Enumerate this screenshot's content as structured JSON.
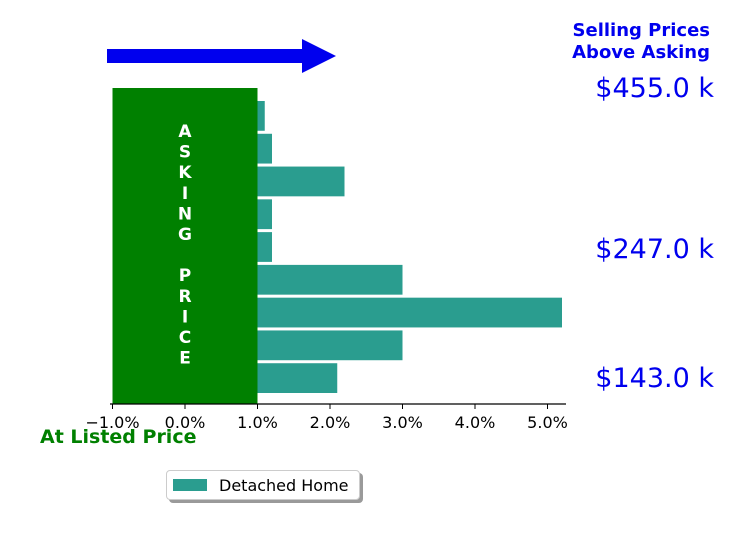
{
  "chart_data": {
    "type": "bar",
    "orientation": "horizontal",
    "x_ticks": [
      "−1.0%",
      "0.0%",
      "1.0%",
      "2.0%",
      "3.0%",
      "4.0%",
      "5.0%"
    ],
    "xlim": [
      -1.0,
      5.3
    ],
    "series": [
      {
        "name": "Detached Home",
        "color": "#2a9d8f",
        "values": [
          1.1,
          1.2,
          2.2,
          1.2,
          1.2,
          3.0,
          5.2,
          3.0,
          2.1
        ]
      }
    ],
    "bar_baseline": 1.0,
    "asking_box": {
      "range": [
        -1.0,
        1.0
      ],
      "color": "#008000",
      "label_lines": [
        "A",
        "S",
        "K",
        "I",
        "N",
        "G",
        "",
        "P",
        "R",
        "I",
        "C",
        "E"
      ]
    },
    "arrow_color": "#0000ee",
    "legend_placement": "bottom-center",
    "grid": false
  },
  "annotations": {
    "selling_title_line1": "Selling Prices",
    "selling_title_line2": "Above Asking",
    "price_high": "$455.0 k",
    "price_mid": "$247.0 k",
    "price_low": "$143.0 k",
    "listed_price": "At Listed Price"
  },
  "legend": {
    "label": "Detached Home"
  }
}
